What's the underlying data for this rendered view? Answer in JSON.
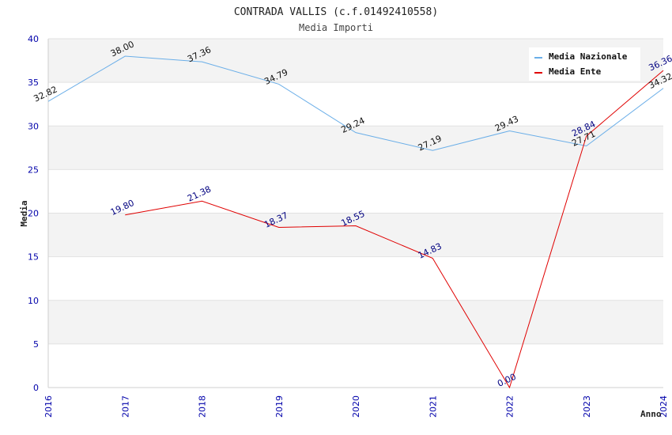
{
  "chart_data": {
    "type": "line",
    "title": "CONTRADA VALLIS (c.f.01492410558)",
    "subtitle": "Media Importi",
    "xlabel": "Anno",
    "ylabel": "Media",
    "categories": [
      "2016",
      "2017",
      "2018",
      "2019",
      "2020",
      "2021",
      "2022",
      "2023",
      "2024"
    ],
    "ylim": [
      0,
      40
    ],
    "yticks": [
      0,
      5,
      10,
      15,
      20,
      25,
      30,
      35,
      40
    ],
    "grid": true,
    "legend_position": "top-right",
    "series": [
      {
        "name": "Media Nazionale",
        "color": "#6aaee8",
        "label_color": "#111111",
        "values": [
          32.82,
          38.0,
          37.36,
          34.79,
          29.24,
          27.19,
          29.43,
          27.71,
          34.32
        ],
        "labels": [
          "32.82",
          "38.00",
          "37.36",
          "34.79",
          "29.24",
          "27.19",
          "29.43",
          "27.71",
          "34.32"
        ]
      },
      {
        "name": "Media Ente",
        "color": "#e00000",
        "label_color": "#000080",
        "values": [
          null,
          19.8,
          21.38,
          18.37,
          18.55,
          14.83,
          0.0,
          28.84,
          36.36
        ],
        "labels": [
          null,
          "19.80",
          "21.38",
          "18.37",
          "18.55",
          "14.83",
          "0.00",
          "28.84",
          "36.36"
        ]
      }
    ]
  }
}
